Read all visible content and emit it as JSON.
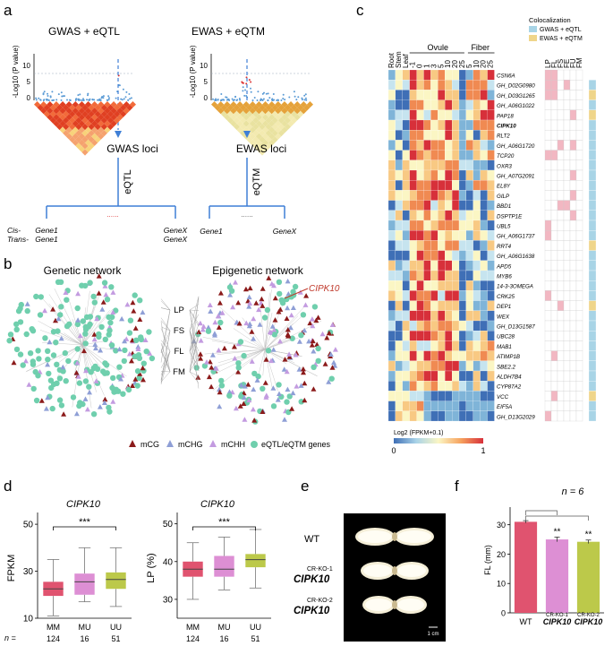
{
  "panels": {
    "a": "a",
    "b": "b",
    "c": "c",
    "d": "d",
    "e": "e",
    "f": "f"
  },
  "panel_a": {
    "left_title": "GWAS + eQTL",
    "right_title": "EWAS + eQTM",
    "ylabel": "-Log10 (P value)",
    "yticks": [
      "10",
      "5",
      "0"
    ],
    "left_loci": "GWAS loci",
    "left_assoc": "eQTL",
    "right_loci": "EWAS loci",
    "right_assoc": "eQTM",
    "cis_label": "Cis-",
    "trans_label": "Trans-",
    "gene1": "Gene1",
    "genex": "GeneX",
    "dots": "......"
  },
  "panel_b": {
    "genetic_title": "Genetic network",
    "epigenetic_title": "Epigenetic network",
    "traits": [
      "LP",
      "FS",
      "FL",
      "FM"
    ],
    "callout": "CIPK10",
    "legend": [
      {
        "label": "mCG",
        "color": "#8b1a1a"
      },
      {
        "label": "mCHG",
        "color": "#8f9fd6"
      },
      {
        "label": "mCHH",
        "color": "#c39be0"
      },
      {
        "label": "eQTL/eQTM genes",
        "color": "#6fcfad"
      }
    ]
  },
  "panel_c": {
    "tissue_headers": [
      "Root",
      "Stem",
      "Leaf"
    ],
    "ovule_label": "Ovule",
    "ovule_cols": [
      "-1",
      "0",
      "1",
      "3",
      "5",
      "10",
      "20",
      "25"
    ],
    "fiber_label": "Fiber",
    "fiber_cols": [
      "5",
      "10",
      "20",
      "25"
    ],
    "trait_cols": [
      "LP",
      "FL",
      "FS",
      "FE",
      "FU",
      "FM"
    ],
    "colocalization_title": "Colocalization",
    "coloc_legend": [
      {
        "label": "GWAS + eQTL",
        "color": "#a8d4e6"
      },
      {
        "label": "EWAS + eQTM",
        "color": "#efd58a"
      }
    ],
    "genes": [
      "CSN6A",
      "GH_D02G0980",
      "GH_D03G1265",
      "GH_A06G1022",
      "PAP18",
      "CIPK10",
      "RLT2",
      "GH_A06G1720",
      "TCP20",
      "OXR3",
      "GH_A07G2091",
      "EL8Y",
      "GILP",
      "BBD1",
      "DSPTP1E",
      "UBL5",
      "GH_A06G1737",
      "RRT4",
      "GH_A06G1638",
      "APD5",
      "MYB6",
      "14-3-3OMEGA",
      "CRK25",
      "DEP1",
      "WEX",
      "GH_D13G1587",
      "UBC28",
      "MAB1",
      "ATIMP1B",
      "SBE2.2",
      "ALDH7B4",
      "CYP87A2",
      "VCC",
      "EIF5A",
      "GH_D13G2029"
    ],
    "colorbar_title": "Log2 (FPKM+0.1)",
    "colorbar_min": "0",
    "colorbar_max": "1"
  },
  "panel_d": {
    "title_left": "CIPK10",
    "title_right": "CIPK10",
    "ylabel_left": "FPKM",
    "ylabel_right": "LP (%)",
    "groups": [
      "MM",
      "MU",
      "UU"
    ],
    "n_label": "n =",
    "n_values": [
      "124",
      "16",
      "51"
    ],
    "significance": "***",
    "yticks_left": [
      "50",
      "30",
      "10"
    ],
    "yticks_right": [
      "50",
      "40",
      "30"
    ],
    "colors": [
      "#e0536f",
      "#dd8fd4",
      "#bcc94a"
    ]
  },
  "panel_e": {
    "labels": [
      "WT",
      "CR-KO-1",
      "CIPK10",
      "CR-KO-2",
      "CIPK10"
    ],
    "scale_bar": "1 cm"
  },
  "panel_f": {
    "n_text": "n = 6",
    "ylabel": "FL (mm)",
    "yticks": [
      "30",
      "20",
      "10",
      "0"
    ],
    "sig": [
      "**",
      "**"
    ],
    "xlabels": [
      "WT",
      "CIPK10",
      "CIPK10"
    ],
    "ko_labels": [
      "CR-KO-1",
      "CR-KO-2"
    ]
  },
  "chart_data": [
    {
      "type": "boxplot",
      "title": "CIPK10",
      "ylabel": "FPKM",
      "categories": [
        "MM",
        "MU",
        "UU"
      ],
      "n": [
        124,
        16,
        51
      ],
      "ylim": [
        10,
        55
      ],
      "boxes": [
        {
          "min": 11,
          "q1": 19.5,
          "median": 22.5,
          "q3": 25.5,
          "max": 35
        },
        {
          "min": 17,
          "q1": 20,
          "median": 25.5,
          "q3": 29,
          "max": 40
        },
        {
          "min": 15,
          "q1": 22.5,
          "median": 26.5,
          "q3": 29.5,
          "max": 40
        }
      ]
    },
    {
      "type": "boxplot",
      "title": "CIPK10",
      "ylabel": "LP (%)",
      "categories": [
        "MM",
        "MU",
        "UU"
      ],
      "n": [
        124,
        16,
        51
      ],
      "ylim": [
        25,
        53
      ],
      "boxes": [
        {
          "min": 30,
          "q1": 36,
          "median": 38,
          "q3": 40,
          "max": 45
        },
        {
          "min": 32.5,
          "q1": 36,
          "median": 38,
          "q3": 41.5,
          "max": 46.5
        },
        {
          "min": 33,
          "q1": 38.5,
          "median": 40.5,
          "q3": 42,
          "max": 48.5
        }
      ]
    },
    {
      "type": "bar",
      "ylabel": "FL (mm)",
      "categories": [
        "WT",
        "CR-KO-1 CIPK10",
        "CR-KO-2 CIPK10"
      ],
      "values": [
        31,
        25,
        24.2
      ],
      "errors": [
        0.4,
        0.8,
        0.6
      ],
      "ylim": [
        0,
        36
      ]
    }
  ]
}
